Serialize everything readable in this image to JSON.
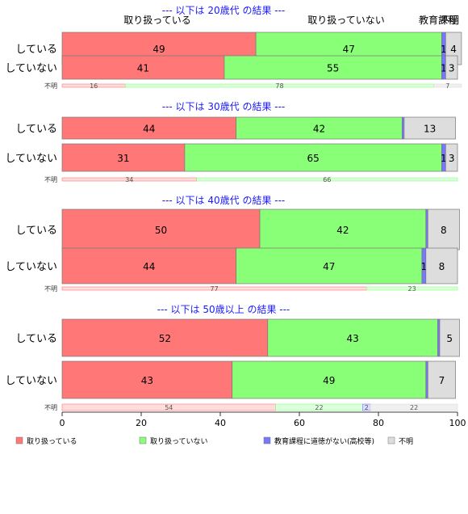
{
  "chart_data": {
    "type": "bar",
    "orientation": "horizontal",
    "stacked": true,
    "xlim": [
      0,
      100
    ],
    "x_ticks": [
      "0",
      "20",
      "40",
      "60",
      "80",
      "100"
    ],
    "top_labels": [
      "取り扱っている",
      "取り扱っていない",
      "教育課程",
      "不明"
    ],
    "legend": {
      "placement": "bottom",
      "entries": [
        {
          "name": "取り扱っている",
          "color": "#ff7777"
        },
        {
          "name": "取り扱っていない",
          "color": "#88ff77"
        },
        {
          "name": "教育課程に道徳がない(高校等)",
          "color": "#7777ff"
        },
        {
          "name": "不明",
          "color": "#dddddd"
        }
      ]
    },
    "groups": [
      {
        "header": "--- 以下は 20歳代 の結果 ---",
        "rows": [
          {
            "label": "している",
            "values": [
              49,
              47,
              1,
              4
            ],
            "labels": [
              "49",
              "47",
              "1",
              "4"
            ]
          },
          {
            "label": "していない",
            "values": [
              41,
              55,
              1,
              3
            ],
            "labels": [
              "41",
              "55",
              "1",
              "3"
            ]
          },
          {
            "label": "不明",
            "values": [
              16,
              78,
              0,
              7
            ],
            "labels": [
              "16",
              "78",
              "",
              "7"
            ]
          }
        ]
      },
      {
        "header": "--- 以下は 30歳代 の結果 ---",
        "rows": [
          {
            "label": "している",
            "values": [
              44,
              42,
              0.5,
              13
            ],
            "labels": [
              "44",
              "42",
              "",
              "13"
            ]
          },
          {
            "label": "していない",
            "values": [
              31,
              65,
              1,
              3
            ],
            "labels": [
              "31",
              "65",
              "1",
              "3"
            ]
          },
          {
            "label": "不明",
            "values": [
              34,
              66,
              0,
              0
            ],
            "labels": [
              "34",
              "66",
              "",
              ""
            ]
          }
        ]
      },
      {
        "header": "--- 以下は 40歳代 の結果 ---",
        "rows": [
          {
            "label": "している",
            "values": [
              50,
              42,
              0.5,
              8
            ],
            "labels": [
              "50",
              "42",
              "",
              "8"
            ]
          },
          {
            "label": "していない",
            "values": [
              44,
              47,
              1,
              8
            ],
            "labels": [
              "44",
              "47",
              "1",
              "8"
            ]
          },
          {
            "label": "不明",
            "values": [
              77,
              23,
              0,
              0
            ],
            "labels": [
              "77",
              "23",
              "",
              ""
            ]
          }
        ]
      },
      {
        "header": "--- 以下は 50歳以上 の結果 ---",
        "rows": [
          {
            "label": "している",
            "values": [
              52,
              43,
              0.5,
              5
            ],
            "labels": [
              "52",
              "43",
              "",
              "5"
            ]
          },
          {
            "label": "していない",
            "values": [
              43,
              49,
              0.5,
              7
            ],
            "labels": [
              "43",
              "49",
              "",
              "7"
            ]
          },
          {
            "label": "不明",
            "values": [
              54,
              22,
              2,
              22
            ],
            "labels": [
              "54",
              "22",
              "2",
              "22"
            ]
          }
        ]
      }
    ]
  }
}
